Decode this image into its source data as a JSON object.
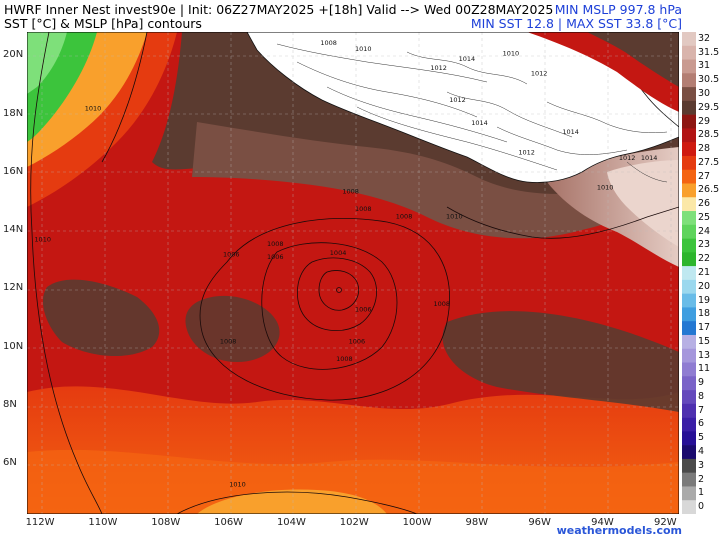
{
  "header": {
    "title_line1": "HWRF Inner Nest  invest90e | Init: 06Z27MAY2025 +[18h] Valid --> Wed 00Z28MAY2025",
    "title_line2": "SST [°C] & MSLP [hPa] contours",
    "min_mslp": "MIN MSLP 997.8 hPa",
    "sst_range": "MIN SST 12.8 | MAX SST 33.8 [°C]"
  },
  "credit": "weathermodels.com",
  "lat_labels": [
    "20N",
    "18N",
    "16N",
    "14N",
    "12N",
    "10N",
    "8N",
    "6N"
  ],
  "lon_labels": [
    "112W",
    "110W",
    "108W",
    "106W",
    "104W",
    "102W",
    "100W",
    "98W",
    "96W",
    "94W",
    "92W"
  ],
  "colorbar": {
    "labels": [
      "32",
      "31.5",
      "31",
      "30.5",
      "30",
      "29.5",
      "29",
      "28.5",
      "28",
      "27.5",
      "27",
      "26.5",
      "26",
      "25",
      "24",
      "23",
      "22",
      "21",
      "20",
      "19",
      "18",
      "17",
      "15",
      "13",
      "11",
      "9",
      "8",
      "7",
      "6",
      "5",
      "4",
      "3",
      "2",
      "1",
      "0"
    ],
    "colors": [
      "#e2c9c2",
      "#d9b4ac",
      "#c99a90",
      "#b37e73",
      "#7a4f43",
      "#5b3b30",
      "#8e1612",
      "#b21414",
      "#cf1a10",
      "#e53b10",
      "#f46412",
      "#f9a02c",
      "#fbe8a8",
      "#7ee07a",
      "#5ed45c",
      "#3cc43c",
      "#2db52d",
      "#bfe8f0",
      "#9bd8ee",
      "#69bce8",
      "#3f9ee0",
      "#2478d2",
      "#b7b0e4",
      "#a597dc",
      "#8f7cd2",
      "#7a63c8",
      "#6449bc",
      "#4e30b0",
      "#3a1ea6",
      "#260f96",
      "#1a0a6e",
      "#4a4a4a",
      "#7a7a7a",
      "#aaaaaa",
      "#d8d8d8"
    ]
  },
  "land_color": "#ffffff",
  "contour_labels": [
    {
      "text": "1008",
      "lon": -102.8,
      "lat": 20.35
    },
    {
      "text": "1010",
      "lon": -101.7,
      "lat": 20.15
    },
    {
      "text": "1012",
      "lon": -99.3,
      "lat": 19.5
    },
    {
      "text": "1014",
      "lon": -98.4,
      "lat": 19.8
    },
    {
      "text": "1010",
      "lon": -97.0,
      "lat": 20.0
    },
    {
      "text": "1012",
      "lon": -96.1,
      "lat": 19.3
    },
    {
      "text": "1012",
      "lon": -98.7,
      "lat": 18.4
    },
    {
      "text": "1014",
      "lon": -98.0,
      "lat": 17.6
    },
    {
      "text": "1012",
      "lon": -96.5,
      "lat": 16.6
    },
    {
      "text": "1014",
      "lon": -95.1,
      "lat": 17.3
    },
    {
      "text": "1012",
      "lon": -93.3,
      "lat": 16.4
    },
    {
      "text": "1014",
      "lon": -92.6,
      "lat": 16.4
    },
    {
      "text": "1010",
      "lon": -94.0,
      "lat": 15.4
    },
    {
      "text": "1010",
      "lon": -110.3,
      "lat": 18.1
    },
    {
      "text": "1010",
      "lon": -111.9,
      "lat": 13.6
    },
    {
      "text": "1010",
      "lon": -98.8,
      "lat": 14.4
    },
    {
      "text": "1006",
      "lon": -105.9,
      "lat": 13.1
    },
    {
      "text": "1008",
      "lon": -104.5,
      "lat": 13.45
    },
    {
      "text": "1006",
      "lon": -104.5,
      "lat": 13.0
    },
    {
      "text": "1004",
      "lon": -102.5,
      "lat": 13.15
    },
    {
      "text": "1008",
      "lon": -101.7,
      "lat": 14.65
    },
    {
      "text": "1008",
      "lon": -102.1,
      "lat": 15.25
    },
    {
      "text": "1008",
      "lon": -100.4,
      "lat": 14.4
    },
    {
      "text": "1008",
      "lon": -99.2,
      "lat": 11.4
    },
    {
      "text": "1006",
      "lon": -101.7,
      "lat": 11.2
    },
    {
      "text": "1006",
      "lon": -101.9,
      "lat": 10.1
    },
    {
      "text": "1008",
      "lon": -106.0,
      "lat": 10.1
    },
    {
      "text": "1008",
      "lon": -102.3,
      "lat": 9.5
    },
    {
      "text": "1010",
      "lon": -105.7,
      "lat": 5.2
    }
  ]
}
